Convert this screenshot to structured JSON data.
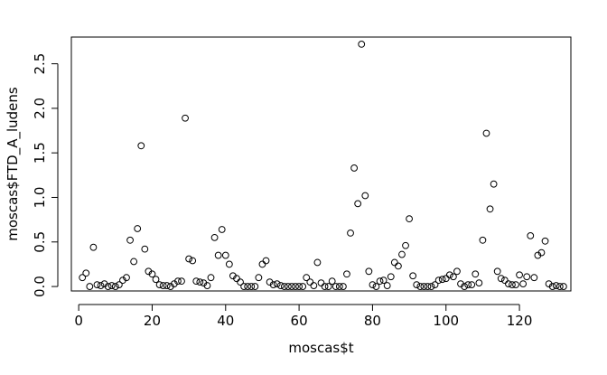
{
  "chart_data": {
    "type": "scatter",
    "xlabel": "moscas$t",
    "ylabel": "moscas$FTD_A_ludens",
    "xlim": [
      -2,
      134
    ],
    "ylim": [
      -0.05,
      2.8
    ],
    "xticks": [
      0,
      20,
      40,
      60,
      80,
      100,
      120
    ],
    "yticks": [
      0.0,
      0.5,
      1.0,
      1.5,
      2.0,
      2.5
    ],
    "xtick_labels": [
      "0",
      "20",
      "40",
      "60",
      "80",
      "100",
      "120"
    ],
    "ytick_labels": [
      "0.0",
      "0.5",
      "1.0",
      "1.5",
      "2.0",
      "2.5"
    ],
    "grid": false,
    "legend": "none",
    "marker": "open-circle",
    "x": [
      1,
      2,
      3,
      4,
      5,
      6,
      7,
      8,
      9,
      10,
      11,
      12,
      13,
      14,
      15,
      16,
      17,
      18,
      19,
      20,
      21,
      22,
      23,
      24,
      25,
      26,
      27,
      28,
      29,
      30,
      31,
      32,
      33,
      34,
      35,
      36,
      37,
      38,
      39,
      40,
      41,
      42,
      43,
      44,
      45,
      46,
      47,
      48,
      49,
      50,
      51,
      52,
      53,
      54,
      55,
      56,
      57,
      58,
      59,
      60,
      61,
      62,
      63,
      64,
      65,
      66,
      67,
      68,
      69,
      70,
      71,
      72,
      73,
      74,
      75,
      76,
      77,
      78,
      79,
      80,
      81,
      82,
      83,
      84,
      85,
      86,
      87,
      88,
      89,
      90,
      91,
      92,
      93,
      94,
      95,
      96,
      97,
      98,
      99,
      100,
      101,
      102,
      103,
      104,
      105,
      106,
      107,
      108,
      109,
      110,
      111,
      112,
      113,
      114,
      115,
      116,
      117,
      118,
      119,
      120,
      121,
      122,
      123,
      124,
      125,
      126,
      127,
      128,
      129,
      130,
      131,
      132
    ],
    "y": [
      0.1,
      0.15,
      0.0,
      0.44,
      0.02,
      0.01,
      0.03,
      0.0,
      0.01,
      0.0,
      0.02,
      0.07,
      0.1,
      0.52,
      0.28,
      0.65,
      1.58,
      0.42,
      0.17,
      0.14,
      0.08,
      0.02,
      0.01,
      0.01,
      0.0,
      0.03,
      0.06,
      0.06,
      1.89,
      0.31,
      0.29,
      0.06,
      0.05,
      0.04,
      0.01,
      0.1,
      0.55,
      0.35,
      0.64,
      0.35,
      0.25,
      0.12,
      0.09,
      0.05,
      0.0,
      0.0,
      0.0,
      0.0,
      0.1,
      0.25,
      0.29,
      0.05,
      0.02,
      0.03,
      0.01,
      0.0,
      0.0,
      0.0,
      0.0,
      0.0,
      0.0,
      0.1,
      0.05,
      0.01,
      0.27,
      0.04,
      0.0,
      0.0,
      0.06,
      0.0,
      0.0,
      0.0,
      0.14,
      0.6,
      1.33,
      0.93,
      2.72,
      1.02,
      0.17,
      0.02,
      0.0,
      0.06,
      0.07,
      0.01,
      0.11,
      0.27,
      0.23,
      0.36,
      0.46,
      0.76,
      0.12,
      0.02,
      0.0,
      0.0,
      0.0,
      0.0,
      0.02,
      0.07,
      0.08,
      0.09,
      0.13,
      0.11,
      0.17,
      0.03,
      0.0,
      0.02,
      0.02,
      0.14,
      0.04,
      0.52,
      1.72,
      0.87,
      1.15,
      0.17,
      0.09,
      0.07,
      0.03,
      0.02,
      0.02,
      0.13,
      0.03,
      0.11,
      0.57,
      0.1,
      0.35,
      0.38,
      0.51,
      0.03,
      0.0,
      0.01,
      0.0,
      0.0
    ]
  }
}
